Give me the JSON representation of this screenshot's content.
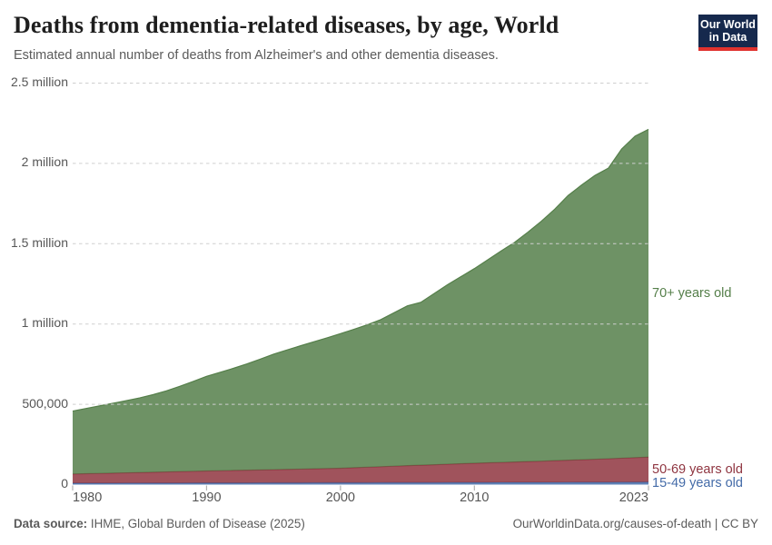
{
  "header": {
    "title": "Deaths from dementia-related diseases, by age, World",
    "subtitle": "Estimated annual number of deaths from Alzheimer's and other dementia diseases."
  },
  "logo": {
    "line1": "Our World",
    "line2": "in Data"
  },
  "chart_data": {
    "type": "area",
    "stacked": true,
    "title": "Deaths from dementia-related diseases, by age, World",
    "x": [
      1980,
      1981,
      1982,
      1983,
      1984,
      1985,
      1986,
      1987,
      1988,
      1989,
      1990,
      1991,
      1992,
      1993,
      1994,
      1995,
      1996,
      1997,
      1998,
      1999,
      2000,
      2001,
      2002,
      2003,
      2004,
      2005,
      2006,
      2007,
      2008,
      2009,
      2010,
      2011,
      2012,
      2013,
      2014,
      2015,
      2016,
      2017,
      2018,
      2019,
      2020,
      2021,
      2022,
      2023
    ],
    "series": [
      {
        "name": "15-49 years old",
        "color": "#446BA8",
        "values": [
          0.009,
          0.0092,
          0.0093,
          0.0095,
          0.0096,
          0.0097,
          0.0099,
          0.01,
          0.0102,
          0.0103,
          0.0105,
          0.0106,
          0.0108,
          0.0109,
          0.0111,
          0.0112,
          0.0114,
          0.0115,
          0.0117,
          0.0118,
          0.012,
          0.0122,
          0.0123,
          0.0124,
          0.0126,
          0.0128,
          0.0129,
          0.013,
          0.0132,
          0.0134,
          0.0135,
          0.0136,
          0.0138,
          0.014,
          0.0141,
          0.0142,
          0.0144,
          0.0146,
          0.0147,
          0.0148,
          0.015,
          0.0153,
          0.0157,
          0.016
        ]
      },
      {
        "name": "50-69 years old",
        "color": "#8F3540",
        "values": [
          0.057,
          0.0587,
          0.0603,
          0.062,
          0.0636,
          0.0653,
          0.0671,
          0.0689,
          0.0708,
          0.0727,
          0.0745,
          0.076,
          0.0774,
          0.0789,
          0.0803,
          0.0818,
          0.0834,
          0.085,
          0.0867,
          0.0883,
          0.09,
          0.093,
          0.0961,
          0.0991,
          0.1022,
          0.1052,
          0.1081,
          0.1109,
          0.1138,
          0.1167,
          0.1195,
          0.122,
          0.1244,
          0.1269,
          0.1293,
          0.1317,
          0.1346,
          0.1374,
          0.1403,
          0.1431,
          0.146,
          0.1492,
          0.1523,
          0.155
        ]
      },
      {
        "name": "70+ years old",
        "color": "#557F4A",
        "values": [
          0.392,
          0.4062,
          0.4204,
          0.4346,
          0.4498,
          0.465,
          0.483,
          0.505,
          0.531,
          0.559,
          0.589,
          0.6124,
          0.6358,
          0.6612,
          0.6896,
          0.719,
          0.7432,
          0.7674,
          0.7906,
          0.8138,
          0.838,
          0.8618,
          0.8866,
          0.9154,
          0.9552,
          0.995,
          1.014,
          1.066,
          1.118,
          1.165,
          1.212,
          1.2644,
          1.3168,
          1.3672,
          1.4286,
          1.494,
          1.566,
          1.648,
          1.71,
          1.767,
          1.809,
          1.9255,
          2.002,
          2.041
        ]
      }
    ],
    "unit": "deaths (million)",
    "xlabel": "",
    "ylabel": "",
    "ylim": [
      0,
      2.5
    ],
    "xlim": [
      1980,
      2023
    ],
    "grid": "dashed-horizontal",
    "legend_position": "right-of-plot",
    "y_ticks": [
      {
        "value": 0,
        "label": "0"
      },
      {
        "value": 0.5,
        "label": "500,000"
      },
      {
        "value": 1,
        "label": "1 million"
      },
      {
        "value": 1.5,
        "label": "1.5 million"
      },
      {
        "value": 2,
        "label": "2 million"
      },
      {
        "value": 2.5,
        "label": "2.5 million"
      }
    ],
    "x_ticks": [
      {
        "value": 1980,
        "label": "1980"
      },
      {
        "value": 1990,
        "label": "1990"
      },
      {
        "value": 2000,
        "label": "2000"
      },
      {
        "value": 2010,
        "label": "2010"
      },
      {
        "value": 2023,
        "label": "2023"
      }
    ]
  },
  "footer": {
    "source_label": "Data source:",
    "source_text": " IHME, Global Burden of Disease (2025)",
    "credit": "OurWorldinData.org/causes-of-death | CC BY"
  }
}
